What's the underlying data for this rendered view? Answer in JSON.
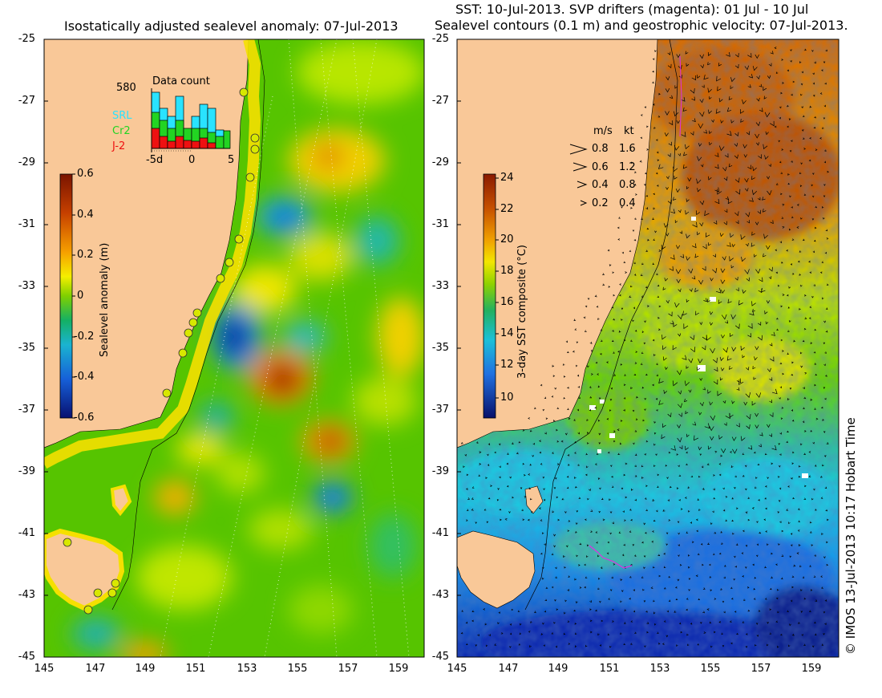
{
  "left_panel": {
    "title": "Isostatically adjusted sealevel anomaly: 07-Jul-2013",
    "y_ticks": [
      "-25",
      "-27",
      "-29",
      "-31",
      "-33",
      "-35",
      "-37",
      "-39",
      "-41",
      "-43",
      "-45"
    ],
    "x_ticks": [
      "145",
      "147",
      "149",
      "151",
      "153",
      "155",
      "157",
      "159"
    ],
    "colorbar": {
      "label": "Sealevel anomaly (m)",
      "ticks": [
        "0.6",
        "0.4",
        "0.2",
        "0",
        "-0.2",
        "-0.4",
        "-0.6"
      ]
    },
    "data_count": {
      "title": "Data count",
      "max_value": "580",
      "legend": [
        {
          "label": "SRL",
          "color": "#29e3ff"
        },
        {
          "label": "Cr2",
          "color": "#22d422"
        },
        {
          "label": "J-2",
          "color": "#ee1111"
        }
      ],
      "x_ticks": [
        "-5d",
        "0",
        "5"
      ]
    }
  },
  "right_panel": {
    "title_line1": "SST: 10-Jul-2013. SVP drifters (magenta): 01 Jul - 10 Jul",
    "title_line2": "Sealevel contours (0.1 m) and geostrophic velocity: 07-Jul-2013.",
    "y_ticks": [
      "-25",
      "-27",
      "-29",
      "-31",
      "-33",
      "-35",
      "-37",
      "-39",
      "-41",
      "-43",
      "-45"
    ],
    "x_ticks": [
      "145",
      "147",
      "149",
      "151",
      "153",
      "155",
      "157",
      "159"
    ],
    "colorbar": {
      "label": "3-day SST composite (°C)",
      "ticks": [
        "24",
        "22",
        "20",
        "18",
        "16",
        "14",
        "12",
        "10"
      ]
    },
    "velocity_legend": {
      "header_ms": "m/s",
      "header_kt": "kt",
      "rows": [
        {
          "ms": "0.8",
          "kt": "1.6"
        },
        {
          "ms": "0.6",
          "kt": "1.2"
        },
        {
          "ms": "0.4",
          "kt": "0.8"
        },
        {
          "ms": "0.2",
          "kt": "0.4"
        }
      ]
    }
  },
  "credit": "© IMOS 13-Jul-2013 10:17 Hobart Time"
}
